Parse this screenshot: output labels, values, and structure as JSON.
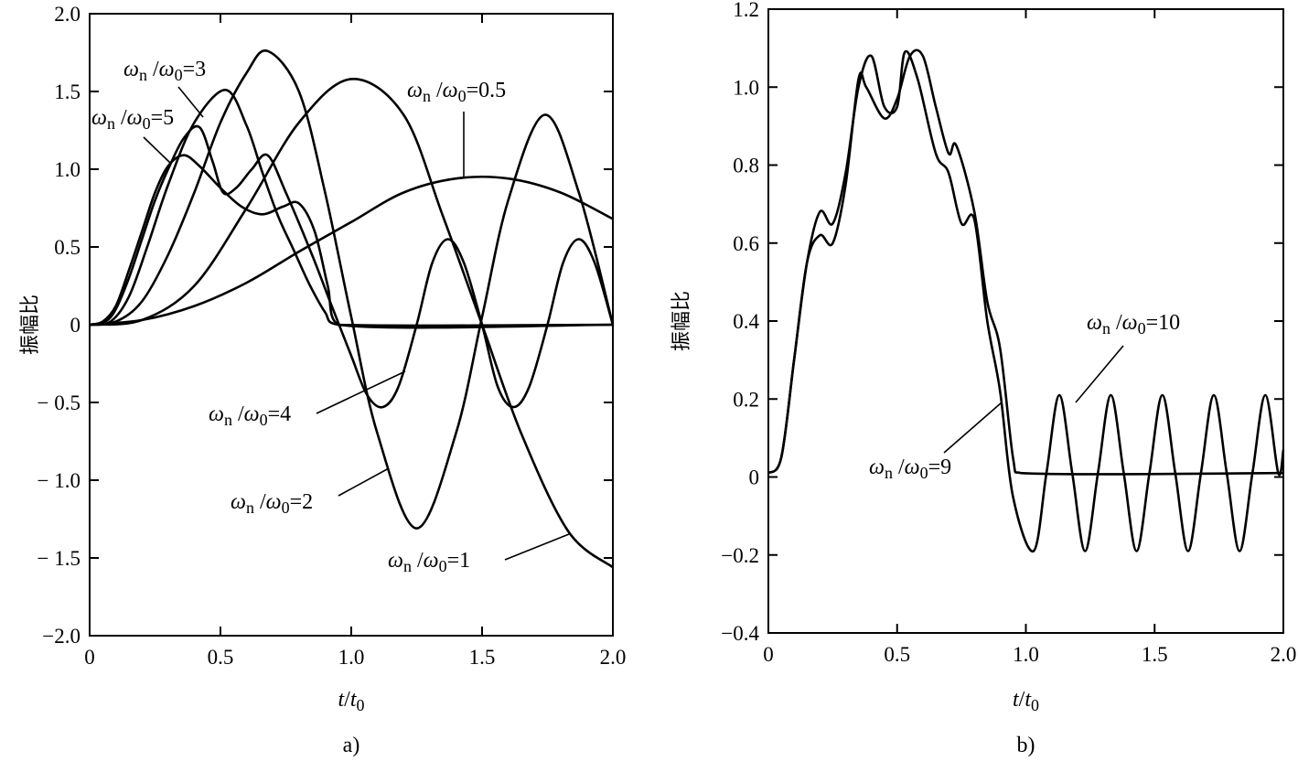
{
  "ratio_label": {
    "numerator": "ω",
    "numerator_sub": "n",
    "slash": " /",
    "denominator": "ω",
    "denominator_sub": "0"
  },
  "chart_data": [
    {
      "type": "line",
      "panel_label": "a)",
      "ylabel": "振幅比",
      "xlabel": {
        "var": "t",
        "slash": "/",
        "var2": "t",
        "sub": "0"
      },
      "xlim": [
        0,
        2
      ],
      "ylim": [
        -2,
        2
      ],
      "xticks": [
        {
          "v": 0,
          "label": "0"
        },
        {
          "v": 0.5,
          "label": "0.5"
        },
        {
          "v": 1,
          "label": "1.0"
        },
        {
          "v": 1.5,
          "label": "1.5"
        },
        {
          "v": 2,
          "label": "2.0"
        }
      ],
      "yticks": [
        {
          "v": 2,
          "label": "2.0"
        },
        {
          "v": 1.5,
          "label": "1.5"
        },
        {
          "v": 1,
          "label": "1.0"
        },
        {
          "v": 0.5,
          "label": "0.5"
        },
        {
          "v": 0,
          "label": "0"
        },
        {
          "v": -0.5,
          "label": "− 0.5"
        },
        {
          "v": -1,
          "label": "− 1.0"
        },
        {
          "v": -1.5,
          "label": "− 1.5"
        },
        {
          "v": -2,
          "label": "−2.0"
        }
      ],
      "series": [
        {
          "name": "ωn/ω0=0.5",
          "value": "0.5",
          "points": [
            [
              0,
              0
            ],
            [
              0.2,
              0.03
            ],
            [
              0.4,
              0.12
            ],
            [
              0.6,
              0.27
            ],
            [
              0.8,
              0.47
            ],
            [
              1.0,
              0.66
            ],
            [
              1.2,
              0.85
            ],
            [
              1.4,
              0.94
            ],
            [
              1.6,
              0.94
            ],
            [
              1.8,
              0.85
            ],
            [
              2.0,
              0.68
            ]
          ]
        },
        {
          "name": "ωn/ω0=1",
          "value": "1",
          "points": [
            [
              0,
              0
            ],
            [
              0.2,
              0.03
            ],
            [
              0.4,
              0.25
            ],
            [
              0.6,
              0.75
            ],
            [
              0.8,
              1.3
            ],
            [
              1.0,
              1.58
            ],
            [
              1.2,
              1.35
            ],
            [
              1.35,
              0.7
            ],
            [
              1.5,
              0
            ],
            [
              1.65,
              -0.7
            ],
            [
              1.83,
              -1.33
            ],
            [
              2.0,
              -1.56
            ]
          ]
        },
        {
          "name": "ωn/ω0=2",
          "value": "2",
          "points": [
            [
              0,
              0
            ],
            [
              0.1,
              0.02
            ],
            [
              0.2,
              0.15
            ],
            [
              0.3,
              0.45
            ],
            [
              0.4,
              0.85
            ],
            [
              0.5,
              1.3
            ],
            [
              0.6,
              1.62
            ],
            [
              0.68,
              1.76
            ],
            [
              0.8,
              1.5
            ],
            [
              0.9,
              0.85
            ],
            [
              1.0,
              0.05
            ],
            [
              1.1,
              -0.7
            ],
            [
              1.25,
              -1.31
            ],
            [
              1.4,
              -0.7
            ],
            [
              1.5,
              0.05
            ],
            [
              1.6,
              0.8
            ],
            [
              1.74,
              1.35
            ],
            [
              1.87,
              0.85
            ],
            [
              2.0,
              0
            ]
          ]
        },
        {
          "name": "ωn/ω0=3",
          "value": "3",
          "points": [
            [
              0,
              0
            ],
            [
              0.08,
              0.02
            ],
            [
              0.15,
              0.18
            ],
            [
              0.22,
              0.5
            ],
            [
              0.3,
              0.9
            ],
            [
              0.4,
              1.3
            ],
            [
              0.52,
              1.51
            ],
            [
              0.6,
              1.28
            ],
            [
              0.66,
              0.98
            ],
            [
              0.72,
              0.7
            ],
            [
              0.78,
              0.48
            ],
            [
              0.84,
              0.26
            ],
            [
              0.9,
              0.08
            ],
            [
              0.95,
              0
            ],
            [
              2.0,
              0
            ]
          ]
        },
        {
          "name": "ωn/ω0=4",
          "value": "4",
          "points": [
            [
              0,
              0
            ],
            [
              0.06,
              0.02
            ],
            [
              0.1,
              0.1
            ],
            [
              0.15,
              0.3
            ],
            [
              0.2,
              0.55
            ],
            [
              0.25,
              0.8
            ],
            [
              0.3,
              1.0
            ],
            [
              0.36,
              1.2
            ],
            [
              0.42,
              1.27
            ],
            [
              0.47,
              1.05
            ],
            [
              0.51,
              0.85
            ],
            [
              0.56,
              0.88
            ],
            [
              0.62,
              1.0
            ],
            [
              0.68,
              1.09
            ],
            [
              0.75,
              0.85
            ],
            [
              0.85,
              0.45
            ],
            [
              0.93,
              0.1
            ],
            [
              1.0,
              -0.2
            ],
            [
              1.06,
              -0.45
            ],
            [
              1.12,
              -0.53
            ],
            [
              1.18,
              -0.4
            ],
            [
              1.25,
              0
            ],
            [
              1.31,
              0.4
            ],
            [
              1.37,
              0.55
            ],
            [
              1.43,
              0.4
            ],
            [
              1.5,
              0
            ],
            [
              1.56,
              -0.4
            ],
            [
              1.62,
              -0.53
            ],
            [
              1.68,
              -0.4
            ],
            [
              1.75,
              0
            ],
            [
              1.81,
              0.4
            ],
            [
              1.87,
              0.55
            ],
            [
              1.93,
              0.4
            ],
            [
              2.0,
              0
            ]
          ]
        },
        {
          "name": "ωn/ω0=5",
          "value": "5",
          "points": [
            [
              0,
              0
            ],
            [
              0.05,
              0.02
            ],
            [
              0.1,
              0.12
            ],
            [
              0.15,
              0.35
            ],
            [
              0.2,
              0.6
            ],
            [
              0.25,
              0.85
            ],
            [
              0.3,
              1.02
            ],
            [
              0.36,
              1.09
            ],
            [
              0.42,
              1.02
            ],
            [
              0.5,
              0.88
            ],
            [
              0.58,
              0.76
            ],
            [
              0.66,
              0.71
            ],
            [
              0.74,
              0.76
            ],
            [
              0.8,
              0.78
            ],
            [
              0.86,
              0.6
            ],
            [
              0.91,
              0.25
            ],
            [
              0.95,
              0
            ],
            [
              2.0,
              0
            ]
          ]
        }
      ]
    },
    {
      "type": "line",
      "panel_label": "b)",
      "ylabel": "振幅比",
      "xlabel": {
        "var": "t",
        "slash": "/",
        "var2": "t",
        "sub": "0"
      },
      "xlim": [
        0,
        2
      ],
      "ylim": [
        -0.4,
        1.2
      ],
      "xticks": [
        {
          "v": 0,
          "label": "0"
        },
        {
          "v": 0.5,
          "label": "0.5"
        },
        {
          "v": 1,
          "label": "1.0"
        },
        {
          "v": 1.5,
          "label": "1.5"
        },
        {
          "v": 2,
          "label": "2.0"
        }
      ],
      "yticks": [
        {
          "v": 1.2,
          "label": "1.2"
        },
        {
          "v": 1.0,
          "label": "1.0"
        },
        {
          "v": 0.8,
          "label": "0.8"
        },
        {
          "v": 0.6,
          "label": "0.6"
        },
        {
          "v": 0.4,
          "label": "0.4"
        },
        {
          "v": 0.2,
          "label": "0.2"
        },
        {
          "v": 0,
          "label": "0"
        },
        {
          "v": -0.2,
          "label": "−0.2"
        },
        {
          "v": -0.4,
          "label": "−0.4"
        }
      ],
      "series": [
        {
          "name": "ωn/ω0=9",
          "value": "9",
          "points": [
            [
              0,
              0.01
            ],
            [
              0.05,
              0.05
            ],
            [
              0.1,
              0.3
            ],
            [
              0.15,
              0.55
            ],
            [
              0.2,
              0.62
            ],
            [
              0.25,
              0.6
            ],
            [
              0.3,
              0.75
            ],
            [
              0.35,
              1.02
            ],
            [
              0.38,
              1.0
            ],
            [
              0.45,
              0.92
            ],
            [
              0.5,
              0.97
            ],
            [
              0.55,
              1.08
            ],
            [
              0.6,
              1.08
            ],
            [
              0.65,
              0.95
            ],
            [
              0.7,
              0.83
            ],
            [
              0.73,
              0.85
            ],
            [
              0.8,
              0.68
            ],
            [
              0.85,
              0.45
            ],
            [
              0.9,
              0.33
            ],
            [
              0.95,
              0.05
            ],
            [
              0.98,
              0.01
            ],
            [
              2.0,
              0.01
            ]
          ]
        },
        {
          "name": "ωn/ω0=10",
          "value": "10",
          "points": [
            [
              0,
              0.01
            ],
            [
              0.05,
              0.05
            ],
            [
              0.1,
              0.3
            ],
            [
              0.15,
              0.55
            ],
            [
              0.2,
              0.68
            ],
            [
              0.25,
              0.65
            ],
            [
              0.3,
              0.78
            ],
            [
              0.35,
              1.0
            ],
            [
              0.4,
              1.08
            ],
            [
              0.45,
              0.95
            ],
            [
              0.5,
              0.95
            ],
            [
              0.53,
              1.09
            ],
            [
              0.58,
              1.02
            ],
            [
              0.65,
              0.83
            ],
            [
              0.7,
              0.78
            ],
            [
              0.75,
              0.65
            ],
            [
              0.8,
              0.66
            ],
            [
              0.85,
              0.4
            ],
            [
              0.9,
              0.22
            ],
            [
              0.95,
              -0.05
            ],
            [
              1.03,
              -0.19
            ],
            [
              1.08,
              0.01
            ],
            [
              1.13,
              0.21
            ],
            [
              1.18,
              0.01
            ],
            [
              1.23,
              -0.19
            ],
            [
              1.28,
              0.01
            ],
            [
              1.33,
              0.21
            ],
            [
              1.38,
              0.01
            ],
            [
              1.43,
              -0.19
            ],
            [
              1.48,
              0.01
            ],
            [
              1.53,
              0.21
            ],
            [
              1.58,
              0.01
            ],
            [
              1.63,
              -0.19
            ],
            [
              1.68,
              0.01
            ],
            [
              1.73,
              0.21
            ],
            [
              1.78,
              0.01
            ],
            [
              1.83,
              -0.19
            ],
            [
              1.88,
              0.01
            ],
            [
              1.93,
              0.21
            ],
            [
              1.98,
              0.01
            ],
            [
              2.0,
              0.07
            ]
          ]
        }
      ]
    }
  ]
}
